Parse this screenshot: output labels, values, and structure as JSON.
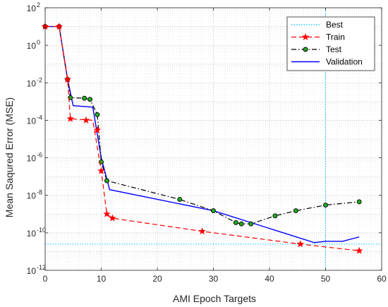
{
  "chart_data": {
    "type": "line",
    "title": "",
    "xlabel": "AMI Epoch Targets",
    "ylabel": "Mean Saqured Error (MSE)",
    "xlim": [
      0,
      60
    ],
    "ylim_log10": [
      -12,
      2
    ],
    "yscale": "log",
    "grid": true,
    "minor_grid": true,
    "legend_position": "top-right",
    "x_ticks": [
      "0",
      "10",
      "20",
      "30",
      "40",
      "50",
      "60"
    ],
    "y_tick_exponents": [
      "2",
      "0",
      "-2",
      "-4",
      "-6",
      "-8",
      "-10",
      "-12"
    ],
    "y_tick_base": "10",
    "best": {
      "x": 50,
      "y": 2.5e-11
    },
    "series": [
      {
        "name": "Best",
        "color": "#00bfff",
        "style": "dotted",
        "marker": "none"
      },
      {
        "name": "Train",
        "color": "#ff0000",
        "style": "dashed",
        "marker": "star",
        "points": [
          [
            0,
            10
          ],
          [
            2.5,
            10
          ],
          [
            4,
            0.015
          ],
          [
            4.5,
            0.00012
          ],
          [
            8.5,
            0.0001
          ],
          [
            10,
            2e-07
          ],
          [
            11,
            1e-09
          ],
          [
            12,
            6e-10
          ],
          [
            28,
            1.2e-10
          ],
          [
            45.5,
            2.5e-11
          ],
          [
            56,
            1.1e-11
          ]
        ],
        "markers": [
          [
            0,
            10
          ],
          [
            2.5,
            10
          ],
          [
            4,
            0.015
          ],
          [
            4.5,
            0.00012
          ],
          [
            7.3,
            0.0001
          ],
          [
            9.3,
            3e-05
          ],
          [
            10,
            2e-07
          ],
          [
            11,
            1e-09
          ],
          [
            12,
            6e-10
          ],
          [
            28,
            1.2e-10
          ],
          [
            45.5,
            2.5e-11
          ],
          [
            56,
            1.1e-11
          ]
        ]
      },
      {
        "name": "Test",
        "color": "#000000",
        "marker_fill": "#22aa22",
        "style": "dashdot",
        "marker": "circle",
        "points": [
          [
            0,
            10
          ],
          [
            2.5,
            10
          ],
          [
            4,
            0.015
          ],
          [
            4.5,
            0.0016
          ],
          [
            7,
            0.0015
          ],
          [
            8,
            0.0013
          ],
          [
            9.3,
            0.0002
          ],
          [
            10,
            6e-07
          ],
          [
            11,
            6e-08
          ],
          [
            24,
            6e-09
          ],
          [
            30,
            1.5e-09
          ],
          [
            34,
            3.5e-10
          ],
          [
            35,
            3e-10
          ],
          [
            36.7,
            3e-10
          ],
          [
            41,
            8e-10
          ],
          [
            44.7,
            1.5e-09
          ],
          [
            50,
            3e-09
          ],
          [
            56,
            4.5e-09
          ]
        ]
      },
      {
        "name": "Validation",
        "color": "#0000ff",
        "style": "solid",
        "marker": "none",
        "points": [
          [
            0,
            10
          ],
          [
            2.5,
            10
          ],
          [
            4,
            0.015
          ],
          [
            5,
            0.0006
          ],
          [
            8.5,
            0.0005
          ],
          [
            10,
            1e-06
          ],
          [
            11.5,
            2e-08
          ],
          [
            30,
            1.5e-09
          ],
          [
            48,
            3e-11
          ],
          [
            50,
            3.5e-11
          ],
          [
            53,
            3.5e-11
          ],
          [
            56,
            6e-11
          ]
        ]
      }
    ]
  }
}
